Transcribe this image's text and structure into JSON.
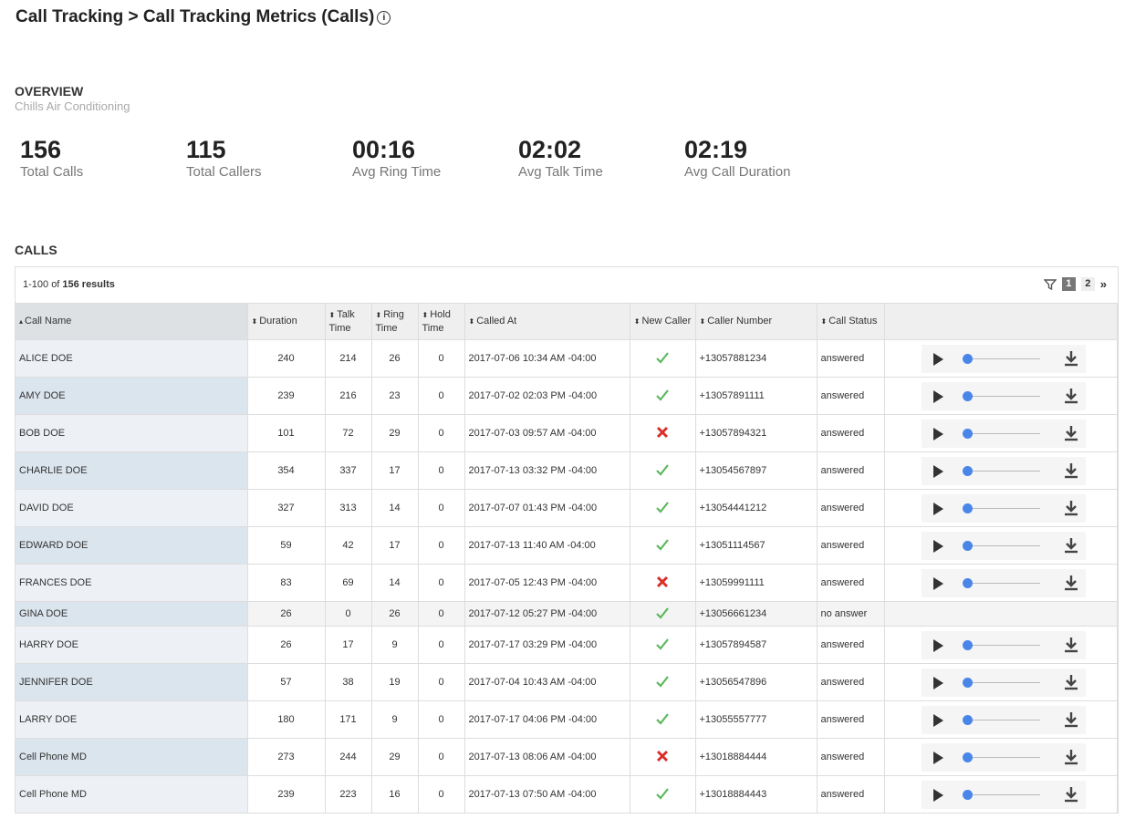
{
  "header": {
    "title": "Call Tracking > Call Tracking Metrics (Calls)"
  },
  "overview": {
    "heading": "OVERVIEW",
    "subtitle": "Chills Air Conditioning",
    "stats": [
      {
        "value": "156",
        "label": "Total Calls"
      },
      {
        "value": "115",
        "label": "Total Callers"
      },
      {
        "value": "00:16",
        "label": "Avg Ring Time"
      },
      {
        "value": "02:02",
        "label": "Avg Talk Time"
      },
      {
        "value": "02:19",
        "label": "Avg Call Duration"
      }
    ]
  },
  "calls": {
    "heading": "CALLS",
    "results": {
      "range": "1-100 of",
      "total": "156 results"
    },
    "pages": [
      "1",
      "2"
    ],
    "table": {
      "columns": [
        "Call Name",
        "Duration",
        "Talk Time",
        "Ring Time",
        "Hold Time",
        "Called At",
        "New Caller",
        "Caller Number",
        "Call Status"
      ],
      "rows": [
        {
          "cells": [
            "ALICE DOE",
            "240",
            "214",
            "26",
            "0",
            "2017-07-06 10:34 AM -04:00",
            "+13057881234",
            "answered"
          ],
          "new_caller": true,
          "recording": true
        },
        {
          "cells": [
            "AMY DOE",
            "239",
            "216",
            "23",
            "0",
            "2017-07-02 02:03 PM -04:00",
            "+13057891111",
            "answered"
          ],
          "new_caller": true,
          "recording": true
        },
        {
          "cells": [
            "BOB DOE",
            "101",
            "72",
            "29",
            "0",
            "2017-07-03 09:57 AM -04:00",
            "+13057894321",
            "answered"
          ],
          "new_caller": false,
          "recording": true
        },
        {
          "cells": [
            "CHARLIE DOE",
            "354",
            "337",
            "17",
            "0",
            "2017-07-13 03:32 PM -04:00",
            "+13054567897",
            "answered"
          ],
          "new_caller": true,
          "recording": true
        },
        {
          "cells": [
            "DAVID DOE",
            "327",
            "313",
            "14",
            "0",
            "2017-07-07 01:43 PM -04:00",
            "+13054441212",
            "answered"
          ],
          "new_caller": true,
          "recording": true
        },
        {
          "cells": [
            "EDWARD DOE",
            "59",
            "42",
            "17",
            "0",
            "2017-07-13 11:40 AM -04:00",
            "+13051114567",
            "answered"
          ],
          "new_caller": true,
          "recording": true
        },
        {
          "cells": [
            "FRANCES DOE",
            "83",
            "69",
            "14",
            "0",
            "2017-07-05 12:43 PM -04:00",
            "+13059991111",
            "answered"
          ],
          "new_caller": false,
          "recording": true
        },
        {
          "cells": [
            "GINA DOE",
            "26",
            "0",
            "26",
            "0",
            "2017-07-12 05:27 PM -04:00",
            "+13056661234",
            "no answer"
          ],
          "new_caller": true,
          "recording": false
        },
        {
          "cells": [
            "HARRY DOE",
            "26",
            "17",
            "9",
            "0",
            "2017-07-17 03:29 PM -04:00",
            "+13057894587",
            "answered"
          ],
          "new_caller": true,
          "recording": true
        },
        {
          "cells": [
            "JENNIFER DOE",
            "57",
            "38",
            "19",
            "0",
            "2017-07-04 10:43 AM -04:00",
            "+13056547896",
            "answered"
          ],
          "new_caller": true,
          "recording": true
        },
        {
          "cells": [
            "LARRY DOE",
            "180",
            "171",
            "9",
            "0",
            "2017-07-17 04:06 PM -04:00",
            "+13055557777",
            "answered"
          ],
          "new_caller": true,
          "recording": true
        },
        {
          "cells": [
            "Cell Phone MD",
            "273",
            "244",
            "29",
            "0",
            "2017-07-13 08:06 AM -04:00",
            "+13018884444",
            "answered"
          ],
          "new_caller": false,
          "recording": true
        },
        {
          "cells": [
            "Cell Phone MD",
            "239",
            "223",
            "16",
            "0",
            "2017-07-13 07:50 AM -04:00",
            "+13018884443",
            "answered"
          ],
          "new_caller": true,
          "recording": true
        }
      ]
    }
  }
}
